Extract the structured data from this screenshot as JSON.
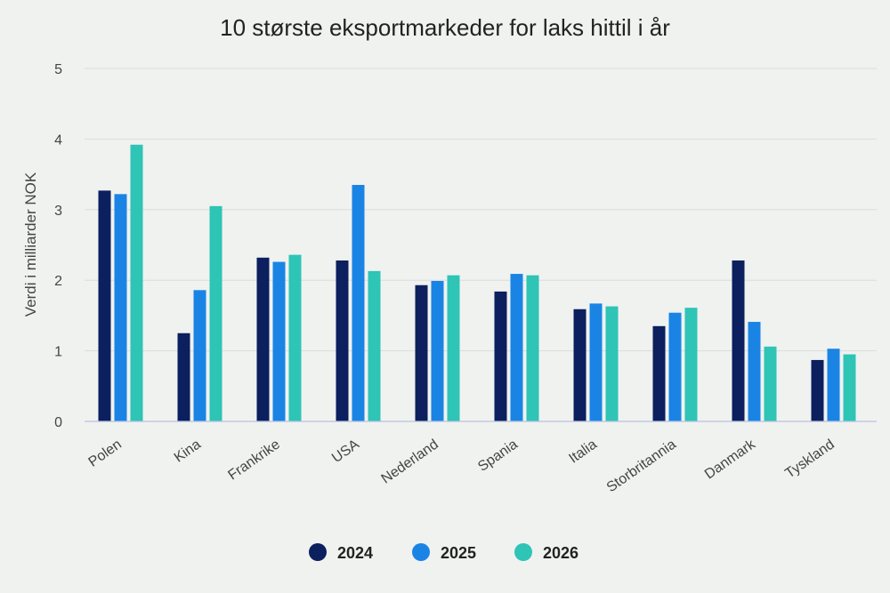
{
  "chart_data": {
    "type": "bar",
    "title": "10 største eksportmarkeder for laks hittil i år",
    "xlabel": "",
    "ylabel": "Verdi i milliarder NOK",
    "ylim": [
      0,
      5
    ],
    "yticks": [
      0,
      1,
      2,
      3,
      4,
      5
    ],
    "grid": true,
    "legend_position": "bottom",
    "categories": [
      "Polen",
      "Kina",
      "Frankrike",
      "USA",
      "Nederland",
      "Spania",
      "Italia",
      "Storbritannia",
      "Danmark",
      "Tyskland"
    ],
    "series": [
      {
        "name": "2024",
        "color": "#0c1f5e",
        "values": [
          3.27,
          1.25,
          2.32,
          2.28,
          1.93,
          1.84,
          1.59,
          1.35,
          2.28,
          0.87
        ]
      },
      {
        "name": "2025",
        "color": "#1a84e5",
        "values": [
          3.22,
          1.86,
          2.26,
          3.35,
          1.99,
          2.09,
          1.67,
          1.54,
          1.41,
          1.03
        ]
      },
      {
        "name": "2026",
        "color": "#2ec4b6",
        "values": [
          3.92,
          3.05,
          2.36,
          2.13,
          2.07,
          2.07,
          1.63,
          1.61,
          1.06,
          0.95
        ]
      }
    ]
  }
}
